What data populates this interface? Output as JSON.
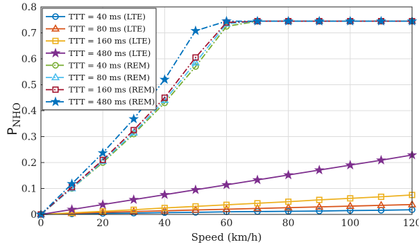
{
  "chart_data": {
    "type": "line",
    "xlabel": "Speed (km/h)",
    "ylabel_main": "P",
    "ylabel_sub": "NHO",
    "xlim": [
      0,
      120
    ],
    "ylim": [
      0,
      0.8
    ],
    "xticks": [
      0,
      20,
      40,
      60,
      80,
      100,
      120
    ],
    "yticks": [
      0,
      0.1,
      0.2,
      0.3,
      0.4,
      0.5,
      0.6,
      0.7,
      0.8
    ],
    "grid": true,
    "legend_position": "top-left",
    "x": [
      0,
      10,
      20,
      30,
      40,
      50,
      60,
      70,
      80,
      90,
      100,
      110,
      120
    ],
    "series": [
      {
        "name": "TTT = 40 ms (LTE)",
        "color": "#0072BD",
        "marker": "circle",
        "dash": "solid",
        "values": [
          0,
          0.002,
          0.004,
          0.005,
          0.007,
          0.008,
          0.01,
          0.011,
          0.012,
          0.013,
          0.015,
          0.016,
          0.018
        ]
      },
      {
        "name": "TTT = 80 ms (LTE)",
        "color": "#D95319",
        "marker": "triangle",
        "dash": "solid",
        "values": [
          0,
          0.004,
          0.008,
          0.011,
          0.014,
          0.017,
          0.02,
          0.023,
          0.026,
          0.029,
          0.032,
          0.035,
          0.038
        ]
      },
      {
        "name": "TTT = 160 ms (LTE)",
        "color": "#EDB120",
        "marker": "square",
        "dash": "solid",
        "values": [
          0,
          0.006,
          0.012,
          0.018,
          0.025,
          0.031,
          0.037,
          0.043,
          0.049,
          0.056,
          0.062,
          0.068,
          0.075
        ]
      },
      {
        "name": "TTT = 480 ms (LTE)",
        "color": "#7E2F8E",
        "marker": "star",
        "dash": "solid",
        "values": [
          0,
          0.019,
          0.038,
          0.057,
          0.076,
          0.095,
          0.114,
          0.133,
          0.152,
          0.171,
          0.19,
          0.209,
          0.229
        ]
      },
      {
        "name": "TTT = 40 ms (REM)",
        "color": "#77AC30",
        "marker": "circle",
        "dash": "dashdot",
        "values": [
          0,
          0.1,
          0.2,
          0.31,
          0.43,
          0.57,
          0.725,
          0.745,
          0.745,
          0.745,
          0.745,
          0.745,
          0.745
        ]
      },
      {
        "name": "TTT = 80 ms (REM)",
        "color": "#4DBEEE",
        "marker": "triangle",
        "dash": "dashdot",
        "values": [
          0,
          0.1,
          0.205,
          0.315,
          0.44,
          0.585,
          0.735,
          0.745,
          0.745,
          0.745,
          0.745,
          0.745,
          0.745
        ]
      },
      {
        "name": "TTT = 160 ms (REM)",
        "color": "#A2142F",
        "marker": "square",
        "dash": "dashdot",
        "values": [
          0,
          0.105,
          0.21,
          0.325,
          0.45,
          0.605,
          0.74,
          0.745,
          0.745,
          0.745,
          0.745,
          0.745,
          0.745
        ]
      },
      {
        "name": "TTT = 480 ms (REM)",
        "color": "#0072BD",
        "marker": "star",
        "dash": "dashdot",
        "values": [
          0,
          0.118,
          0.237,
          0.368,
          0.52,
          0.708,
          0.745,
          0.745,
          0.745,
          0.745,
          0.745,
          0.745,
          0.745
        ]
      }
    ]
  }
}
